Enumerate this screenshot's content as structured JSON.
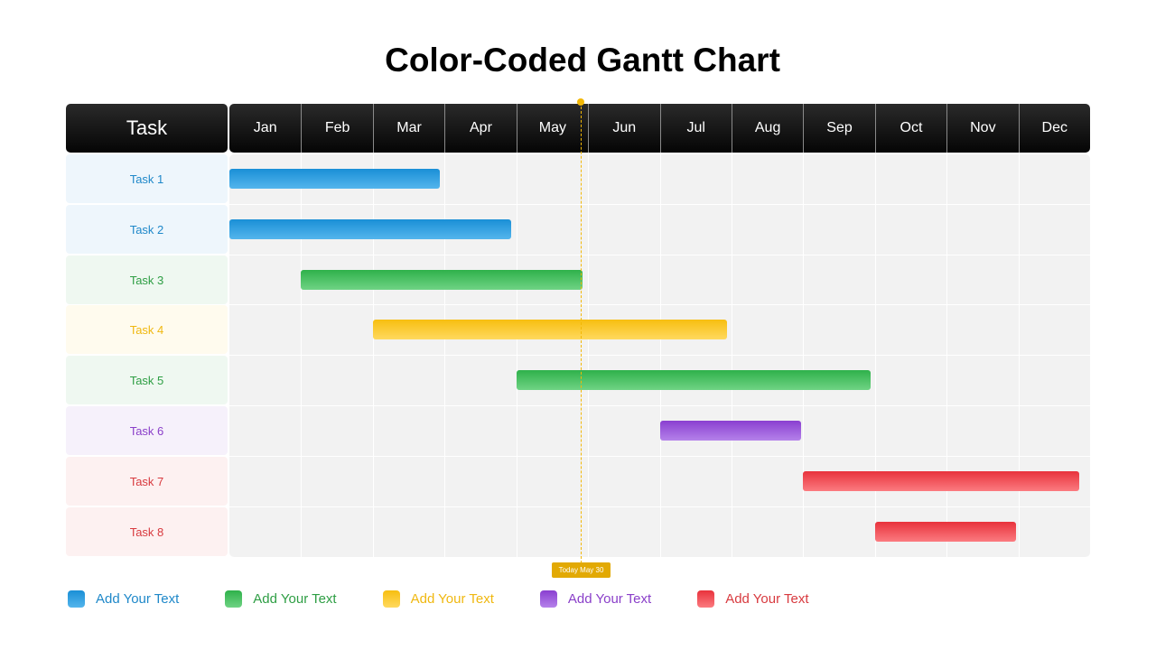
{
  "chart_data": {
    "type": "gantt",
    "title": "Color-Coded Gantt Chart",
    "task_header": "Task",
    "months": [
      "Jan",
      "Feb",
      "Mar",
      "Apr",
      "May",
      "Jun",
      "Jul",
      "Aug",
      "Sep",
      "Oct",
      "Nov",
      "Dec"
    ],
    "tasks": [
      {
        "name": "Task 1",
        "start": 0.0,
        "end": 2.93,
        "group": 0
      },
      {
        "name": "Task 2",
        "start": 0.0,
        "end": 3.93,
        "group": 0
      },
      {
        "name": "Task 3",
        "start": 1.0,
        "end": 4.93,
        "group": 1
      },
      {
        "name": "Task 4",
        "start": 2.0,
        "end": 6.93,
        "group": 2
      },
      {
        "name": "Task 5",
        "start": 4.0,
        "end": 8.93,
        "group": 1
      },
      {
        "name": "Task 6",
        "start": 6.0,
        "end": 7.97,
        "group": 3
      },
      {
        "name": "Task 7",
        "start": 8.0,
        "end": 11.85,
        "group": 4
      },
      {
        "name": "Task 8",
        "start": 9.0,
        "end": 10.97,
        "group": 4
      }
    ],
    "today": {
      "label": "Today May 30",
      "value": 4.9
    },
    "groups": [
      {
        "name": "Add Your Text",
        "color": "#1a8fd6",
        "light": "#54b5ec",
        "text": "#1f88c9",
        "bg": "#eef6fc"
      },
      {
        "name": "Add Your Text",
        "color": "#2fb14b",
        "light": "#6fd384",
        "text": "#2e9e44",
        "bg": "#eff8f1"
      },
      {
        "name": "Add Your Text",
        "color": "#f7be10",
        "light": "#ffd95e",
        "text": "#f0b810",
        "bg": "#fffbee"
      },
      {
        "name": "Add Your Text",
        "color": "#8a3fd0",
        "light": "#b582ea",
        "text": "#8a3fc9",
        "bg": "#f6f1fb"
      },
      {
        "name": "Add Your Text",
        "color": "#e8323c",
        "light": "#fb7b80",
        "text": "#d83a3f",
        "bg": "#fdf1f1"
      }
    ]
  }
}
